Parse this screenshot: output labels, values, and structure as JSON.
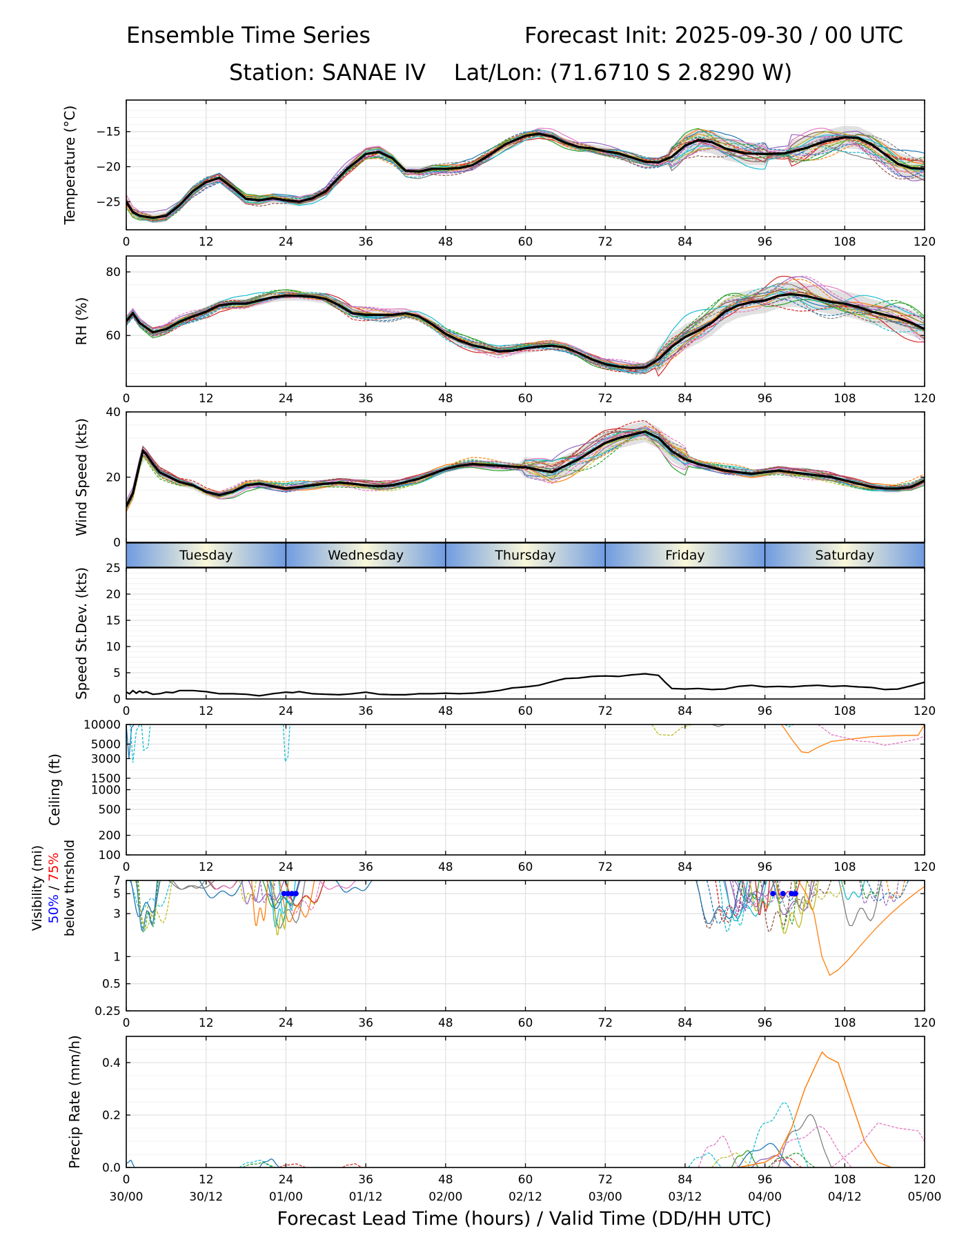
{
  "header": {
    "title_left": "Ensemble Time Series",
    "title_right": "Forecast Init: 2025-09-30 / 00 UTC",
    "station_line": "Station: SANAE IV    Lat/Lon: (71.6710 S 2.8290 W)"
  },
  "x_axis": {
    "hour_ticks": [
      0,
      12,
      24,
      36,
      48,
      60,
      72,
      84,
      96,
      108,
      120
    ],
    "hour_labels": [
      "0",
      "12",
      "24",
      "36",
      "48",
      "60",
      "72",
      "84",
      "96",
      "108",
      "120"
    ],
    "valid_time_labels": [
      "30/00",
      "30/12",
      "01/00",
      "01/12",
      "02/00",
      "02/12",
      "03/00",
      "03/12",
      "04/00",
      "04/12",
      "05/00"
    ],
    "xlabel": "Forecast Lead Time (hours) / Valid Time (DD/HH UTC)",
    "xlim": [
      0,
      120
    ]
  },
  "day_band": {
    "days": [
      "Tuesday",
      "Wednesday",
      "Thursday",
      "Friday",
      "Saturday"
    ]
  },
  "visibility_legend": {
    "line1": "Visibility (mi)",
    "pct50": "50%",
    "slash": " / ",
    "pct75": "75%",
    "line3": "below thrshold"
  },
  "colors": {
    "mean": "#000000",
    "spread": "#c8c8c8",
    "grid": "#e2e2e2",
    "blue50": "#0000ff",
    "red75": "#ff0000",
    "members": [
      "#1f77b4",
      "#ff7f0e",
      "#2ca02c",
      "#d62728",
      "#9467bd",
      "#8c564b",
      "#e377c2",
      "#7f7f7f",
      "#bcbd22",
      "#17becf"
    ]
  },
  "chart_data": [
    {
      "id": "temp",
      "type": "line",
      "ylabel": "Temperature (°C)",
      "ylim": [
        -29,
        -10.5
      ],
      "yticks": [
        -25,
        -20,
        -15
      ],
      "ytick_labels": [
        "−25",
        "−20",
        "−15"
      ],
      "grid": true,
      "mean": {
        "x": [
          0,
          1,
          2,
          4,
          6,
          8,
          10,
          12,
          14,
          16,
          18,
          20,
          22,
          24,
          26,
          28,
          30,
          33,
          36,
          38,
          40,
          42,
          44,
          46,
          48,
          50,
          52,
          54,
          57,
          60,
          62,
          64,
          66,
          68,
          70,
          72,
          74,
          76,
          78,
          80,
          82,
          84,
          86,
          88,
          90,
          93,
          96,
          99,
          102,
          105,
          108,
          110,
          112,
          114,
          116,
          118,
          120
        ],
        "y": [
          -25,
          -26.5,
          -27,
          -27.3,
          -27,
          -25.5,
          -23.5,
          -22.2,
          -21.6,
          -23,
          -24.6,
          -24.8,
          -24.5,
          -24.8,
          -25,
          -24.5,
          -23.5,
          -20.5,
          -18.2,
          -17.9,
          -18.8,
          -20.6,
          -20.7,
          -20.3,
          -20.3,
          -20.2,
          -19.8,
          -18.7,
          -16.8,
          -15.6,
          -15.3,
          -15.7,
          -16.6,
          -17.2,
          -17.4,
          -17.8,
          -18.1,
          -18.7,
          -19.3,
          -19.4,
          -18.6,
          -17,
          -16.2,
          -16.5,
          -17.4,
          -18.1,
          -18.2,
          -18.1,
          -17.4,
          -16.4,
          -15.8,
          -15.9,
          -16.8,
          -18.2,
          -19.6,
          -20.2,
          -20.3
        ]
      },
      "spread": 0.9,
      "spread_hi": [
        [
          82,
          96
        ],
        [
          100,
          120
        ]
      ]
    },
    {
      "id": "rh",
      "type": "line",
      "ylabel": "RH (%)",
      "ylim": [
        44,
        85
      ],
      "yticks": [
        60,
        80
      ],
      "ytick_labels": [
        "60",
        "80"
      ],
      "grid": true,
      "mean": {
        "x": [
          0,
          1,
          2,
          4,
          6,
          8,
          10,
          12,
          14,
          16,
          18,
          20,
          22,
          24,
          26,
          28,
          30,
          32,
          34,
          36,
          38,
          40,
          42,
          44,
          46,
          48,
          50,
          52,
          54,
          56,
          58,
          60,
          62,
          64,
          66,
          68,
          70,
          72,
          74,
          76,
          78,
          80,
          82,
          84,
          86,
          88,
          90,
          92,
          94,
          96,
          98,
          100,
          102,
          104,
          106,
          108,
          110,
          112,
          114,
          116,
          118,
          120
        ],
        "y": [
          64.5,
          67,
          64,
          61,
          62,
          64.3,
          66,
          67.5,
          69.5,
          70,
          70,
          71,
          72,
          72.5,
          72.5,
          72.2,
          71.5,
          69.5,
          67,
          66.5,
          66.5,
          66.5,
          67,
          66,
          63.5,
          60.5,
          58.5,
          57,
          56,
          55,
          55.2,
          56,
          56.5,
          56.8,
          56.2,
          54.5,
          52.5,
          51,
          50.2,
          49.8,
          50,
          52.5,
          56.5,
          59.5,
          61.5,
          64,
          67.5,
          69.5,
          70.5,
          71,
          72.5,
          73,
          72.5,
          71.5,
          70.5,
          70,
          69,
          67.5,
          66.5,
          65.5,
          64,
          62
        ]
      },
      "spread": 2.2,
      "spread_hi": [
        [
          80,
          120
        ]
      ]
    },
    {
      "id": "wind",
      "type": "line",
      "ylabel": "Wind Speed (kts)",
      "ylim": [
        0,
        40
      ],
      "yticks": [
        0,
        20,
        40
      ],
      "ytick_labels": [
        "0",
        "20",
        "40"
      ],
      "grid": true,
      "mean": {
        "x": [
          0,
          1,
          2,
          2.5,
          3,
          4,
          5,
          6,
          8,
          10,
          12,
          14,
          16,
          18,
          20,
          22,
          24,
          26,
          28,
          30,
          32,
          34,
          36,
          38,
          40,
          42,
          44,
          46,
          48,
          50,
          52,
          54,
          56,
          58,
          60,
          62,
          64,
          66,
          68,
          70,
          72,
          74,
          76,
          78,
          80,
          82,
          84,
          86,
          88,
          90,
          92,
          94,
          96,
          98,
          100,
          102,
          104,
          106,
          108,
          110,
          112,
          114,
          116,
          118,
          120
        ],
        "y": [
          11,
          15,
          24,
          28,
          27,
          24,
          21.5,
          20.5,
          18.5,
          17.5,
          15.5,
          14.5,
          15.5,
          17.5,
          18,
          17.2,
          16.5,
          17,
          17.5,
          18,
          18.3,
          18,
          17.5,
          17.2,
          17.5,
          18.5,
          19.5,
          21,
          22.5,
          23.5,
          24,
          23.8,
          23.5,
          23.2,
          23,
          22.2,
          21.5,
          23.5,
          25.5,
          28,
          30.5,
          32,
          33,
          34,
          32,
          28,
          25.5,
          24,
          23,
          22,
          21.5,
          21,
          21.5,
          22,
          21.5,
          21,
          20.5,
          20,
          19,
          18,
          17,
          16.5,
          16.5,
          17,
          19
        ]
      },
      "spread": 1.8,
      "spread_hi": [
        [
          60,
          84
        ]
      ]
    },
    {
      "id": "sdev",
      "type": "line",
      "ylabel": "Speed St.Dev. (kts)",
      "ylim": [
        0,
        25
      ],
      "yticks": [
        0,
        5,
        10,
        15,
        20,
        25
      ],
      "ytick_labels": [
        "0",
        "5",
        "10",
        "15",
        "20",
        "25"
      ],
      "grid": true,
      "mean": {
        "x": [
          0,
          0.5,
          1,
          1.5,
          2,
          2.5,
          3,
          4,
          5,
          6,
          7,
          8,
          10,
          12,
          14,
          16,
          18,
          20,
          22,
          24,
          25,
          26,
          28,
          30,
          32,
          34,
          36,
          38,
          40,
          42,
          44,
          46,
          48,
          50,
          52,
          54,
          56,
          58,
          60,
          62,
          64,
          66,
          68,
          70,
          72,
          74,
          76,
          78,
          80,
          81,
          82,
          84,
          86,
          88,
          90,
          92,
          94,
          96,
          98,
          100,
          102,
          104,
          106,
          108,
          110,
          112,
          114,
          116,
          118,
          120
        ],
        "y": [
          1.3,
          1.0,
          1.6,
          1.1,
          1.5,
          1.2,
          1.4,
          0.9,
          1.0,
          1.3,
          1.2,
          1.6,
          1.6,
          1.4,
          1.0,
          1.0,
          0.9,
          0.6,
          1.0,
          1.3,
          1.2,
          1.4,
          1.0,
          0.9,
          0.8,
          1.0,
          1.3,
          0.9,
          0.8,
          0.8,
          1.0,
          1.0,
          1.1,
          1.0,
          1.1,
          1.3,
          1.6,
          2.1,
          2.3,
          2.6,
          3.3,
          3.9,
          4.0,
          4.3,
          4.4,
          4.3,
          4.6,
          4.8,
          4.5,
          3.2,
          2.0,
          1.9,
          2.0,
          1.8,
          1.9,
          2.4,
          2.6,
          2.3,
          2.4,
          2.3,
          2.5,
          2.6,
          2.4,
          2.5,
          2.3,
          2.2,
          1.8,
          1.9,
          2.5,
          3.2
        ]
      }
    },
    {
      "id": "ceiling",
      "type": "line",
      "ylabel": "Ceiling (ft)",
      "yscale": "log",
      "ylim": [
        100,
        10000
      ],
      "yticks": [
        100,
        200,
        500,
        1000,
        1500,
        3000,
        5000,
        10000
      ],
      "ytick_labels": [
        "100",
        "200",
        "500",
        "1000",
        "1500",
        "3000",
        "5000",
        "10000"
      ],
      "grid": true
    },
    {
      "id": "vis",
      "type": "line",
      "yscale": "log",
      "ylim": [
        0.25,
        7
      ],
      "yticks": [
        0.25,
        0.5,
        1,
        3,
        5,
        7
      ],
      "ytick_labels": [
        "0.25",
        "0.5",
        "1",
        "3",
        "5",
        "7"
      ],
      "grid": true,
      "threshold_marks_hours": [
        23.7,
        24.3,
        24.9,
        25.5,
        97.2,
        98.7,
        100.0,
        100.6
      ],
      "threshold_value": 5
    },
    {
      "id": "precip",
      "type": "line",
      "ylabel": "Precip Rate (mm/h)",
      "ylim": [
        0,
        0.5
      ],
      "yticks": [
        0.0,
        0.2,
        0.4
      ],
      "ytick_labels": [
        "0.0",
        "0.2",
        "0.4"
      ],
      "grid": true
    }
  ]
}
